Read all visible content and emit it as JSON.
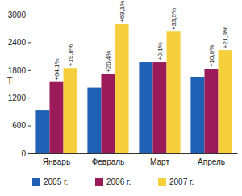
{
  "chart_data": {
    "type": "bar",
    "y_label": "Т",
    "categories": [
      "Январь",
      "Февраль",
      "Март",
      "Апрель"
    ],
    "series": [
      {
        "name": "2005 г.",
        "color": "#1f5fb4",
        "values": [
          940,
          1420,
          1970,
          1650
        ]
      },
      {
        "name": "2006 г.",
        "color": "#9b1b5a",
        "values": [
          1540,
          1710,
          1970,
          1830
        ],
        "annotations": [
          "+64,1%",
          "+20,4%",
          "+0,1%",
          "+10,8%"
        ]
      },
      {
        "name": "2007 г.",
        "color": "#f5cf3c",
        "values": [
          1845,
          2790,
          2630,
          2230
        ],
        "annotations": [
          "+19,8%",
          "+63,1%",
          "+33,5%",
          "+21,8%"
        ]
      }
    ],
    "ylim": [
      0,
      3000
    ],
    "yticks": [
      0,
      600,
      1200,
      1800,
      2400,
      3000
    ],
    "grid": false,
    "legend": "bottom"
  }
}
